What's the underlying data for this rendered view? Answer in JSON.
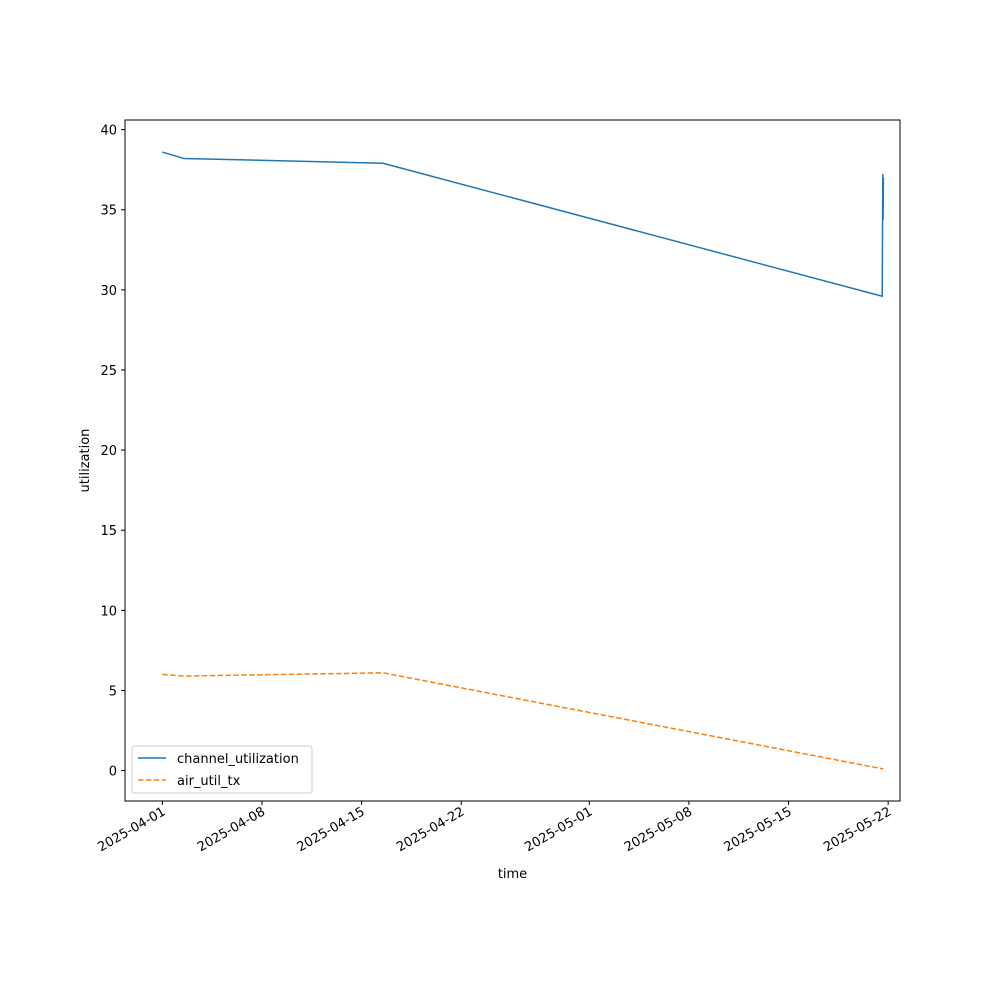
{
  "chart_data": {
    "type": "line",
    "title": "",
    "xlabel": "time",
    "ylabel": "utilization",
    "x_type": "datetime",
    "xlim": [
      "2025-03-29T09:00",
      "2025-05-22T20:00"
    ],
    "ylim": [
      -1.9,
      40.6
    ],
    "x_ticks": [
      "2025-04-01",
      "2025-04-08",
      "2025-04-15",
      "2025-04-22",
      "2025-05-01",
      "2025-05-08",
      "2025-05-15",
      "2025-05-22"
    ],
    "y_ticks": [
      0,
      5,
      10,
      15,
      20,
      25,
      30,
      35,
      40
    ],
    "grid": false,
    "legend_position": "lower-left",
    "series": [
      {
        "name": "channel_utilization",
        "color": "#1f77b4",
        "style": "solid",
        "points": [
          {
            "x": "2025-04-01T00:00",
            "y": 38.6
          },
          {
            "x": "2025-04-02T12:00",
            "y": 38.2
          },
          {
            "x": "2025-04-16T12:00",
            "y": 37.9
          },
          {
            "x": "2025-05-21T14:00",
            "y": 29.6
          },
          {
            "x": "2025-05-21T15:00",
            "y": 37.2
          },
          {
            "x": "2025-05-21T15:30",
            "y": 34.4
          },
          {
            "x": "2025-05-21T16:00",
            "y": 37.0
          }
        ]
      },
      {
        "name": "air_util_tx",
        "color": "#ff7f0e",
        "style": "dashed",
        "points": [
          {
            "x": "2025-04-01T00:00",
            "y": 6.0
          },
          {
            "x": "2025-04-02T12:00",
            "y": 5.9
          },
          {
            "x": "2025-04-16T12:00",
            "y": 6.1
          },
          {
            "x": "2025-05-21T16:00",
            "y": 0.1
          }
        ]
      }
    ]
  }
}
